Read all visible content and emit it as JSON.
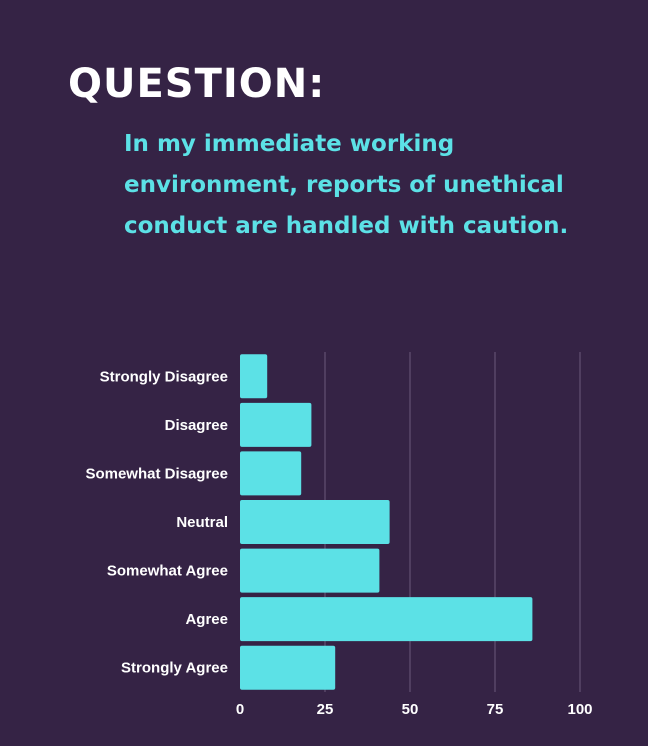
{
  "heading": "QUESTION:",
  "question": "In my immediate working environment, reports of unethical conduct are handled with caution.",
  "colors": {
    "background": "#352345",
    "bar": "#5ce1e6",
    "heading": "#ffffff",
    "question": "#5ce1e6",
    "gridline": "#6b5a7a",
    "label": "#ffffff"
  },
  "chart_data": {
    "type": "bar",
    "orientation": "horizontal",
    "categories": [
      "Strongly Disagree",
      "Disagree",
      "Somewhat Disagree",
      "Neutral",
      "Somewhat Agree",
      "Agree",
      "Strongly Agree"
    ],
    "values": [
      8,
      21,
      18,
      44,
      41,
      86,
      28
    ],
    "x_ticks": [
      0,
      25,
      50,
      75,
      100
    ],
    "xlim": [
      0,
      100
    ],
    "grid": true,
    "legend": "none"
  }
}
